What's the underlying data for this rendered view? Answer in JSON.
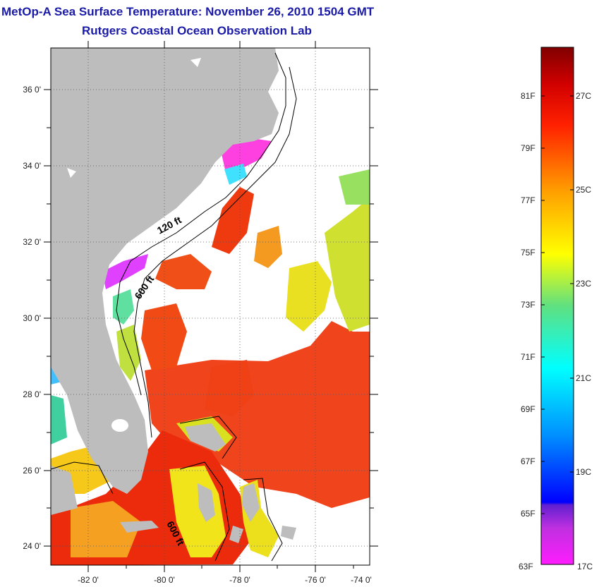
{
  "title": {
    "line1": "MetOp-A Sea Surface Temperature:  November 26, 2010 1504 GMT",
    "line2": "Rutgers Coastal Ocean Observation Lab"
  },
  "map": {
    "lon_ticks": [
      "-82 0'",
      "-80 0'",
      "-78 0'",
      "-76 0'",
      "-74 0'"
    ],
    "lat_ticks": [
      "36 0'",
      "34 0'",
      "32 0'",
      "30 0'",
      "28 0'",
      "26 0'",
      "24 0'"
    ],
    "isobath_labels": [
      "120 ft",
      "600 ft",
      "600 ft"
    ],
    "colors": {
      "land": "#bdbdbd",
      "cloud": "#ffffff",
      "warm": "#ef3a10",
      "mid": "#f5ec10",
      "cool": "#7fe060"
    }
  },
  "colorbar": {
    "fahrenheit": [
      "81F",
      "79F",
      "77F",
      "75F",
      "73F",
      "71F",
      "69F",
      "67F",
      "65F",
      "63F"
    ],
    "celsius": [
      "27C",
      "25C",
      "23C",
      "21C",
      "19C",
      "17C"
    ]
  }
}
